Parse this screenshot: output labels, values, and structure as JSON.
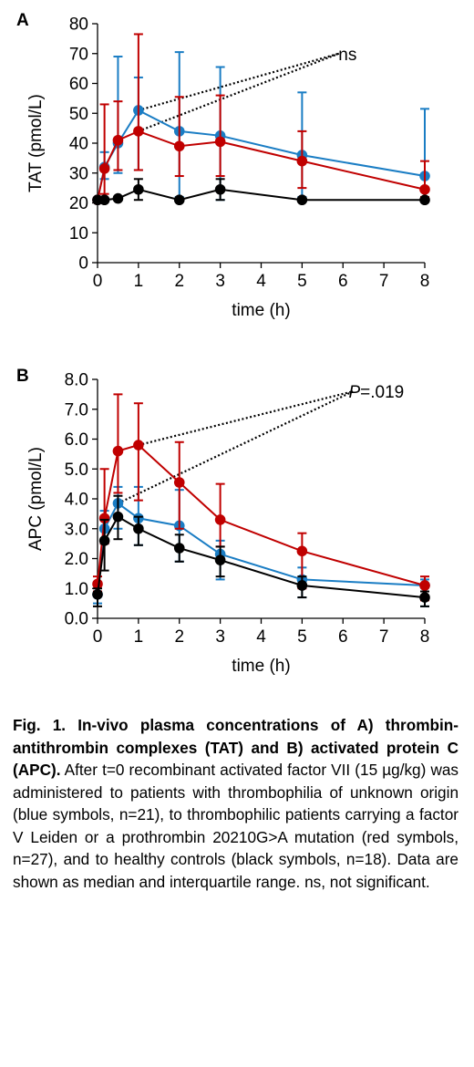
{
  "chart_data": [
    {
      "type": "line",
      "panel_label": "A",
      "xlabel": "time (h)",
      "ylabel": "TAT (pmol/L)",
      "x_ticks": [
        0,
        1,
        2,
        3,
        4,
        5,
        6,
        7,
        8
      ],
      "y_ticks": [
        0,
        10,
        20,
        30,
        40,
        50,
        60,
        70,
        80
      ],
      "y_tick_labels": [
        "0",
        "10",
        "20",
        "30",
        "40",
        "50",
        "60",
        "70",
        "80"
      ],
      "xlim": [
        0,
        8
      ],
      "ylim": [
        0,
        80
      ],
      "annotation": {
        "text": "ns",
        "x": 6.0,
        "y": 70
      },
      "comparison_lines": [
        {
          "from": [
            1,
            51
          ],
          "to": [
            5.9,
            70
          ]
        },
        {
          "from": [
            1,
            44
          ],
          "to": [
            5.9,
            70
          ]
        }
      ],
      "series": [
        {
          "color": "#1a7dc4",
          "x": [
            0,
            0.17,
            0.5,
            1,
            2,
            3,
            5,
            8
          ],
          "y": [
            21,
            32,
            40,
            51,
            44,
            42.5,
            36,
            29
          ],
          "low": [
            21,
            28,
            30,
            31,
            22,
            21,
            22,
            21
          ],
          "high": [
            21,
            37,
            69,
            62,
            70.5,
            65.5,
            57,
            51.5
          ]
        },
        {
          "color": "#c00000",
          "x": [
            0,
            0.17,
            0.5,
            1,
            2,
            3,
            5,
            8
          ],
          "y": [
            21,
            31.5,
            41,
            44,
            39,
            40.5,
            34,
            24.5
          ],
          "low": [
            21,
            23,
            31,
            31,
            29,
            29,
            25,
            22
          ],
          "high": [
            21,
            53,
            54,
            76.5,
            55.5,
            56,
            44,
            34
          ]
        },
        {
          "color": "#000000",
          "x": [
            0,
            0.17,
            0.5,
            1,
            2,
            3,
            5,
            8
          ],
          "y": [
            21,
            21,
            21.5,
            24.5,
            21,
            24.5,
            21,
            21
          ],
          "low": [
            21,
            21,
            21,
            21,
            21,
            21,
            21,
            21
          ],
          "high": [
            21,
            21,
            22,
            28,
            21,
            28,
            21,
            21
          ]
        }
      ]
    },
    {
      "type": "line",
      "panel_label": "B",
      "xlabel": "time (h)",
      "ylabel": "APC (pmol/L)",
      "x_ticks": [
        0,
        1,
        2,
        3,
        4,
        5,
        6,
        7,
        8
      ],
      "y_ticks": [
        0,
        1,
        2,
        3,
        4,
        5,
        6,
        7,
        8
      ],
      "y_tick_labels": [
        "0.0",
        "1.0",
        "2.0",
        "3.0",
        "4.0",
        "5.0",
        "6.0",
        "7.0",
        "8.0"
      ],
      "xlim": [
        0,
        8
      ],
      "ylim": [
        0,
        8
      ],
      "annotation": {
        "p_italic": "P",
        "text": "=.019",
        "x": 6.25,
        "y": 7.6
      },
      "comparison_lines": [
        {
          "from": [
            1,
            5.8
          ],
          "to": [
            6.25,
            7.6
          ]
        },
        {
          "from": [
            0.5,
            3.85
          ],
          "to": [
            6.25,
            7.6
          ]
        }
      ],
      "series": [
        {
          "color": "#1a7dc4",
          "x": [
            0,
            0.17,
            0.5,
            1,
            2,
            3,
            5,
            8
          ],
          "y": [
            0.8,
            3.0,
            3.85,
            3.35,
            3.1,
            2.15,
            1.3,
            1.1
          ],
          "low": [
            0.5,
            2.5,
            3.0,
            2.45,
            1.9,
            1.3,
            0.7,
            0.4
          ],
          "high": [
            1.2,
            3.6,
            4.4,
            4.4,
            4.3,
            2.6,
            1.7,
            1.3
          ]
        },
        {
          "color": "#c00000",
          "x": [
            0,
            0.17,
            0.5,
            1,
            2,
            3,
            5,
            8
          ],
          "y": [
            1.15,
            3.35,
            5.6,
            5.8,
            4.55,
            3.3,
            2.25,
            1.1
          ],
          "low": [
            0.9,
            2.5,
            4.2,
            3.95,
            3.0,
            2.4,
            1.0,
            0.6
          ],
          "high": [
            1.4,
            5.0,
            7.5,
            7.2,
            5.9,
            4.5,
            2.85,
            1.4
          ]
        },
        {
          "color": "#000000",
          "x": [
            0,
            0.17,
            0.5,
            1,
            2,
            3,
            5,
            8
          ],
          "y": [
            0.8,
            2.6,
            3.4,
            3.0,
            2.35,
            1.95,
            1.1,
            0.7
          ],
          "low": [
            0.4,
            1.6,
            2.65,
            2.45,
            1.9,
            1.4,
            0.7,
            0.4
          ],
          "high": [
            1.0,
            3.3,
            4.1,
            3.4,
            2.8,
            2.4,
            1.4,
            0.9
          ]
        }
      ]
    }
  ],
  "caption": {
    "title": "Fig. 1. In-vivo plasma concentrations of A) thrombin-antithrombin complexes (TAT) and B) activated protein C (APC).",
    "body": "After t=0 recombinant activated factor VII (15 µg/kg) was administered to patients with thrombophilia of unknown origin (blue symbols, n=21), to thrombophilic patients carrying a factor V Leiden or a prothrombin 20210G>A mutation (red symbols, n=27), and to healthy controls (black symbols, n=18). Data are shown as median and interquartile range. ns, not significant."
  }
}
